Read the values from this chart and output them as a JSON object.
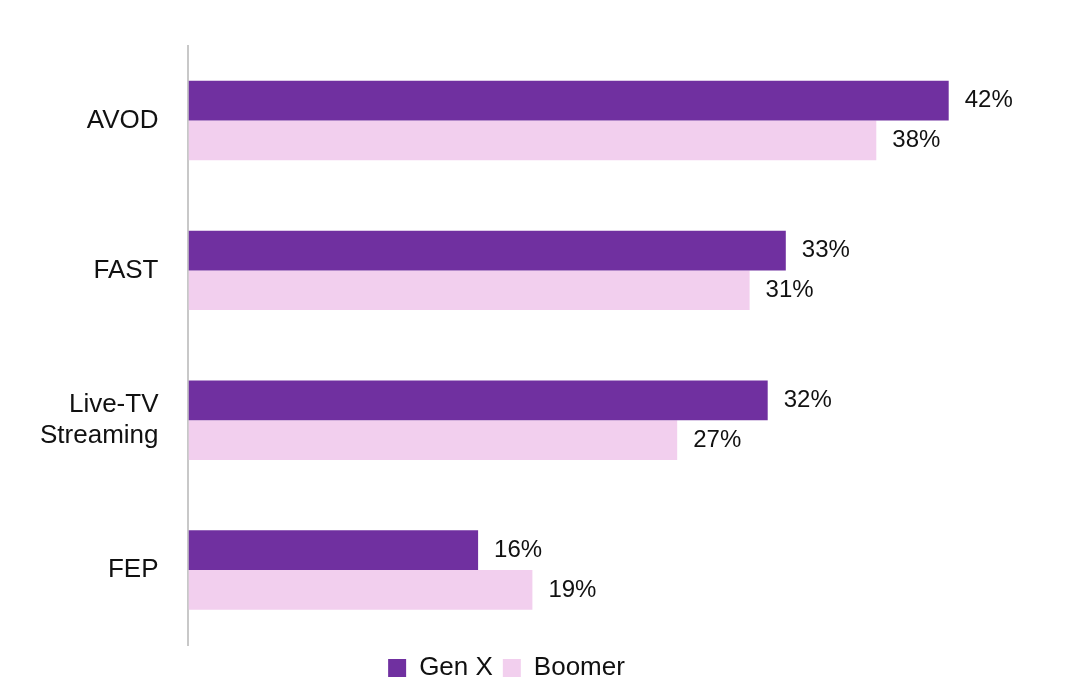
{
  "chart_data": {
    "type": "bar",
    "orientation": "horizontal",
    "categories": [
      "AVOD",
      "FAST",
      "Live-TV Streaming",
      "FEP"
    ],
    "series": [
      {
        "name": "Gen X",
        "color": "#7030a0",
        "values": [
          42,
          33,
          32,
          16
        ],
        "value_labels": [
          "42%",
          "33%",
          "32%",
          "16%"
        ]
      },
      {
        "name": "Boomer",
        "color": "#f2cfee",
        "values": [
          38,
          31,
          27,
          19
        ],
        "value_labels": [
          "38%",
          "31%",
          "27%",
          "19%"
        ]
      }
    ],
    "legend": "bottom"
  }
}
